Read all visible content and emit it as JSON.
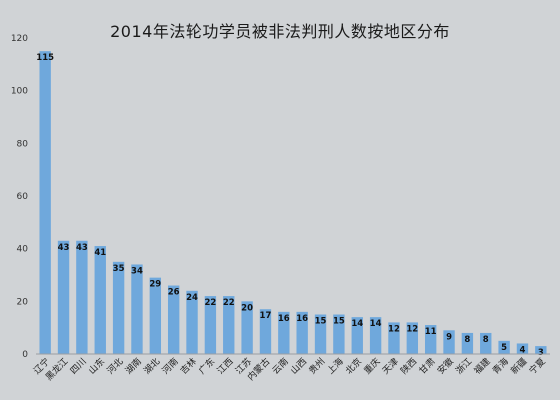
{
  "chart_data": {
    "type": "bar",
    "title": "2014年法轮功学员被非法判刑人数按地区分布",
    "xlabel": "",
    "ylabel": "",
    "ylim": [
      0,
      120
    ],
    "yticks": [
      0,
      20,
      40,
      60,
      80,
      100,
      120
    ],
    "grid": false,
    "legend": "none",
    "bar_color": "#6fa8dc",
    "categories": [
      "辽宁",
      "黑龙江",
      "四川",
      "山东",
      "河北",
      "湖南",
      "湖北",
      "河南",
      "吉林",
      "广东",
      "江西",
      "江苏",
      "内蒙古",
      "云南",
      "山西",
      "贵州",
      "上海",
      "北京",
      "重庆",
      "天津",
      "陕西",
      "甘肃",
      "安徽",
      "浙江",
      "福建",
      "青海",
      "新疆",
      "宁夏"
    ],
    "values": [
      115,
      43,
      43,
      41,
      35,
      34,
      29,
      26,
      24,
      22,
      22,
      20,
      17,
      16,
      16,
      15,
      15,
      14,
      14,
      12,
      12,
      11,
      9,
      8,
      8,
      5,
      4,
      3
    ]
  }
}
